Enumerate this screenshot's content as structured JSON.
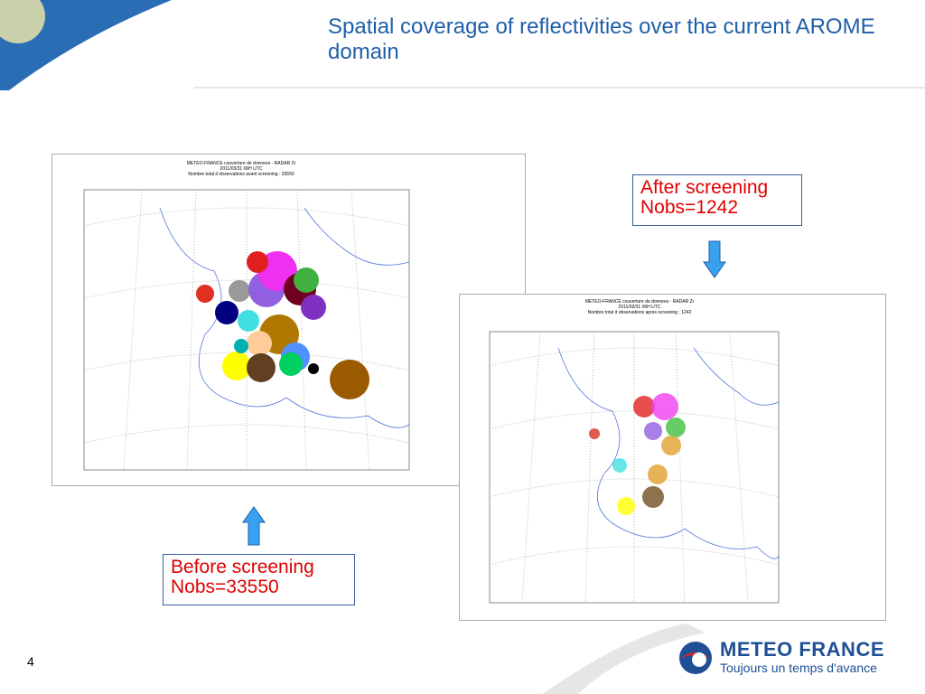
{
  "header": {
    "title": "Spatial coverage of reflectivities over the current AROME domain"
  },
  "maps": {
    "before": {
      "title": "METEO-FRANCE couverture de donnees - RADAR Zr",
      "date": "2011/03/31 06H UTC",
      "nobs": "Nombre total d observations avant screening : 33550"
    },
    "after": {
      "title": "METEO-FRANCE couverture de donnees - RADAR Zr",
      "date": "2011/03/31 06H UTC",
      "nobs": "Nombre total d observations apres screening : 1242"
    }
  },
  "callouts": {
    "after": {
      "line1": "After screening",
      "line2": "Nobs=1242"
    },
    "before": {
      "line1": "Before screening",
      "line2": "Nobs=33550"
    }
  },
  "footer": {
    "page_number": "4",
    "logo_name": "METEO FRANCE",
    "logo_tagline": "Toujours un temps d'avance"
  }
}
